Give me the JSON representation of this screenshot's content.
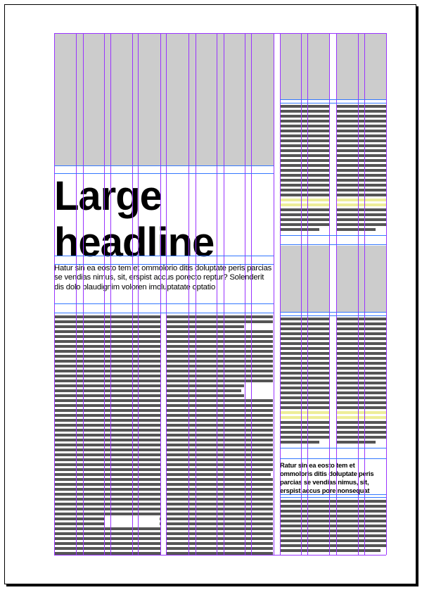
{
  "headline": {
    "line1": "Large",
    "line2": "headline"
  },
  "deck_text": "Hatur sin ea eosto tem et ommolorio ditis doluptate peris parcias se vendias nimus, sit, erspist accus porecto reptur? Solenderit dis dolo blaudignim voloren imoluptatate optatio",
  "sidebar_text": "Ratur sin ea eosto tem et ommoloris ditis doluptate peris parcias se vendias nimus, sit, erspist accus pore nonsequat",
  "colors": {
    "page": "#ffffff",
    "image_placeholder": "#cccccc",
    "text_bar": "#555555",
    "highlight_bar": "#eeee99",
    "column_guide": "#9933ff",
    "baseline_guide": "#3377ff"
  }
}
